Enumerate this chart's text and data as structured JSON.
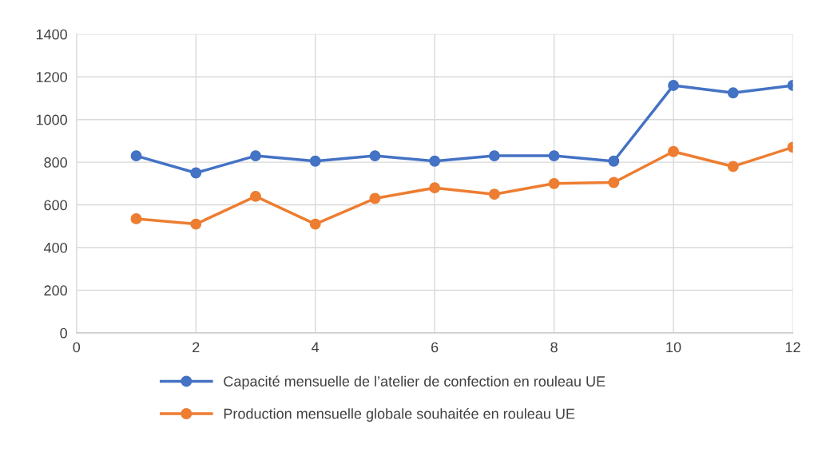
{
  "chart_data": {
    "type": "line",
    "x": [
      1,
      2,
      3,
      4,
      5,
      6,
      7,
      8,
      9,
      10,
      11,
      12
    ],
    "series": [
      {
        "name": "Capacité mensuelle de l’atelier de confection en rouleau UE",
        "color": "#4472c4",
        "values": [
          830,
          750,
          830,
          805,
          830,
          805,
          830,
          830,
          805,
          1160,
          1125,
          1160
        ]
      },
      {
        "name": "Production mensuelle globale souhaitée en rouleau UE",
        "color": "#ed7d31",
        "values": [
          535,
          510,
          640,
          510,
          630,
          680,
          650,
          700,
          705,
          850,
          780,
          870
        ]
      }
    ],
    "xlim": [
      0,
      12
    ],
    "xticks": [
      0,
      2,
      4,
      6,
      8,
      10,
      12
    ],
    "ylim": [
      0,
      1400
    ],
    "yticks": [
      0,
      200,
      400,
      600,
      800,
      1000,
      1200,
      1400
    ],
    "grid": true,
    "legend": "bottom",
    "marker": "circle",
    "line_style": "solid"
  }
}
